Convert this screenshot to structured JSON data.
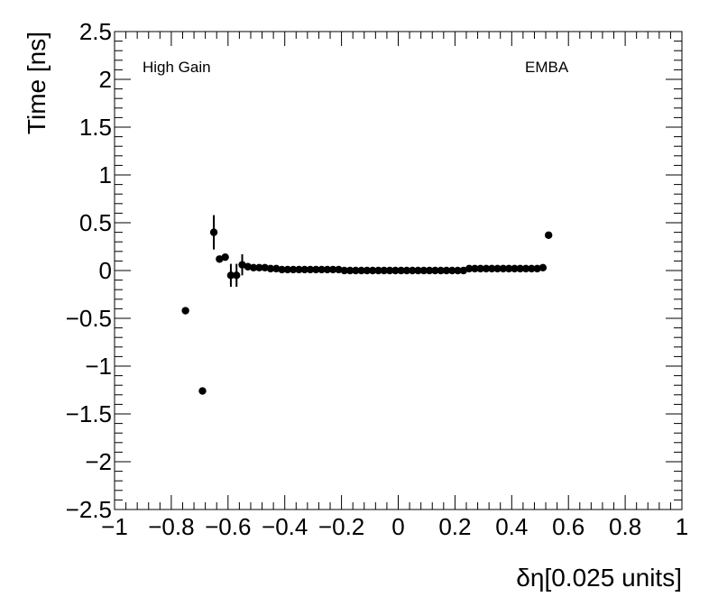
{
  "chart_data": {
    "type": "scatter",
    "xlabel": "δη[0.025 units]",
    "ylabel": "Time [ns]",
    "annotations": [
      "High Gain",
      "EMBA"
    ],
    "series": [
      {
        "color": "#000000",
        "x": [
          -0.75,
          -0.69,
          -0.65,
          -0.63,
          -0.61,
          -0.59,
          -0.57,
          -0.55,
          -0.53,
          -0.51,
          -0.49,
          -0.47,
          -0.45,
          -0.43,
          -0.41,
          -0.39,
          -0.37,
          -0.35,
          -0.33,
          -0.31,
          -0.29,
          -0.27,
          -0.25,
          -0.23,
          -0.21,
          -0.19,
          -0.17,
          -0.15,
          -0.13,
          -0.11,
          -0.09,
          -0.07,
          -0.05,
          -0.03,
          -0.01,
          0.01,
          0.03,
          0.05,
          0.07,
          0.09,
          0.11,
          0.13,
          0.15,
          0.17,
          0.19,
          0.21,
          0.23,
          0.25,
          0.27,
          0.29,
          0.31,
          0.33,
          0.35,
          0.37,
          0.39,
          0.41,
          0.43,
          0.45,
          0.47,
          0.49,
          0.51,
          0.53
        ],
        "values": [
          -0.42,
          -1.26,
          0.4,
          0.12,
          0.14,
          -0.05,
          -0.05,
          0.06,
          0.04,
          0.03,
          0.03,
          0.03,
          0.02,
          0.02,
          0.01,
          0.01,
          0.01,
          0.01,
          0.01,
          0.01,
          0.01,
          0.01,
          0.01,
          0.01,
          0.01,
          0,
          0,
          0,
          0,
          0,
          0,
          0,
          0,
          0,
          0,
          0,
          0,
          0,
          0,
          0,
          0,
          0,
          0,
          0,
          0,
          0,
          0,
          0.02,
          0.02,
          0.02,
          0.02,
          0.02,
          0.02,
          0.02,
          0.02,
          0.02,
          0.02,
          0.02,
          0.02,
          0.02,
          0.03,
          0.37
        ],
        "yerr": [
          null,
          null,
          0.18,
          null,
          null,
          0.12,
          0.12,
          0.11,
          null,
          null,
          null,
          null,
          null,
          null,
          null,
          null,
          null,
          null,
          null,
          null,
          null,
          null,
          null,
          null,
          null,
          null,
          null,
          null,
          null,
          null,
          null,
          null,
          null,
          null,
          null,
          null,
          null,
          null,
          null,
          null,
          null,
          null,
          null,
          null,
          null,
          null,
          null,
          null,
          null,
          null,
          null,
          null,
          null,
          null,
          null,
          null,
          null,
          null,
          null,
          null,
          null,
          null
        ]
      }
    ],
    "xlim": [
      -1,
      1
    ],
    "xticks": [
      {
        "value": -1,
        "label": "−1"
      },
      {
        "value": -0.8,
        "label": "−0.8"
      },
      {
        "value": -0.6,
        "label": "−0.6"
      },
      {
        "value": -0.4,
        "label": "−0.4"
      },
      {
        "value": -0.2,
        "label": "−0.2"
      },
      0,
      0.2,
      0.4,
      0.6,
      0.8,
      1
    ],
    "ylim": [
      -2.5,
      2.5
    ],
    "yticks": [
      {
        "value": -2.5,
        "label": "−2.5"
      },
      {
        "value": -2,
        "label": "−2"
      },
      {
        "value": -1.5,
        "label": "−1.5"
      },
      {
        "value": -1,
        "label": "−1"
      },
      {
        "value": -0.5,
        "label": "−0.5"
      },
      0,
      0.5,
      1,
      1.5,
      2,
      2.5
    ]
  }
}
